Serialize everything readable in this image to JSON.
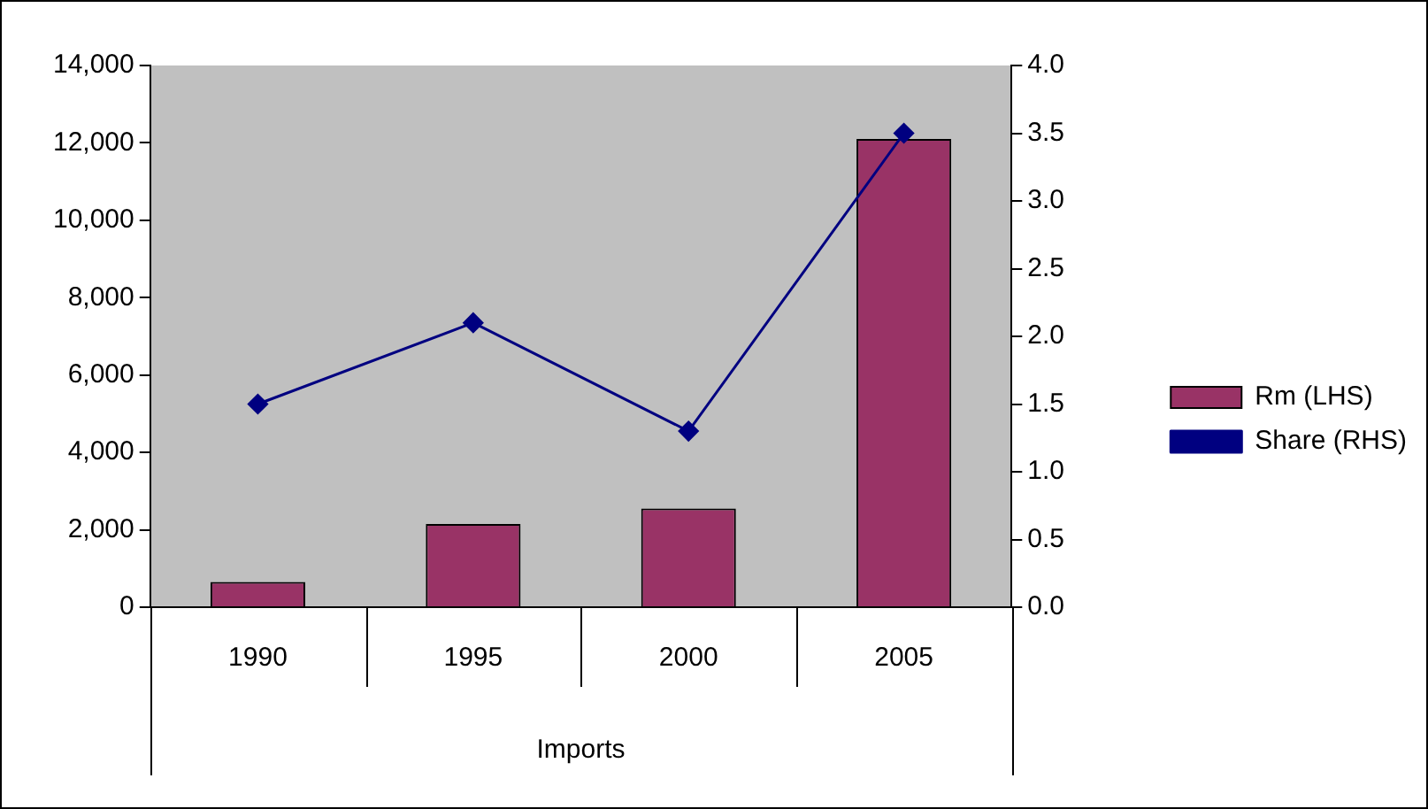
{
  "chart_data": {
    "type": "bar",
    "categories": [
      "1990",
      "1995",
      "2000",
      "2005"
    ],
    "xlabel": "Imports",
    "series": [
      {
        "name": "Rm (LHS)",
        "color": "#993366",
        "values": [
          650,
          2150,
          2550,
          12100
        ]
      },
      {
        "name": "Share (RHS)",
        "type": "line",
        "axis": "y2",
        "color": "#000080",
        "values": [
          1.5,
          2.1,
          1.3,
          3.5
        ]
      }
    ],
    "ylim": [
      0,
      14000
    ],
    "yticks": [
      {
        "value": 0,
        "label": "0"
      },
      {
        "value": 2000,
        "label": "2,000"
      },
      {
        "value": 4000,
        "label": "4,000"
      },
      {
        "value": 6000,
        "label": "6,000"
      },
      {
        "value": 8000,
        "label": "8,000"
      },
      {
        "value": 10000,
        "label": "10,000"
      },
      {
        "value": 12000,
        "label": "12,000"
      },
      {
        "value": 14000,
        "label": "14,000"
      }
    ],
    "y2lim": [
      0,
      4.0
    ],
    "y2ticks": [
      {
        "value": 0,
        "label": "0.0"
      },
      {
        "value": 0.5,
        "label": "0.5"
      },
      {
        "value": 1,
        "label": "1.0"
      },
      {
        "value": 1.5,
        "label": "1.5"
      },
      {
        "value": 2,
        "label": "2.0"
      },
      {
        "value": 2.5,
        "label": "2.5"
      },
      {
        "value": 3,
        "label": "3.0"
      },
      {
        "value": 3.5,
        "label": "3.5"
      },
      {
        "value": 4,
        "label": "4.0"
      }
    ],
    "legend": "right",
    "marker": "diamond",
    "grid": false
  }
}
